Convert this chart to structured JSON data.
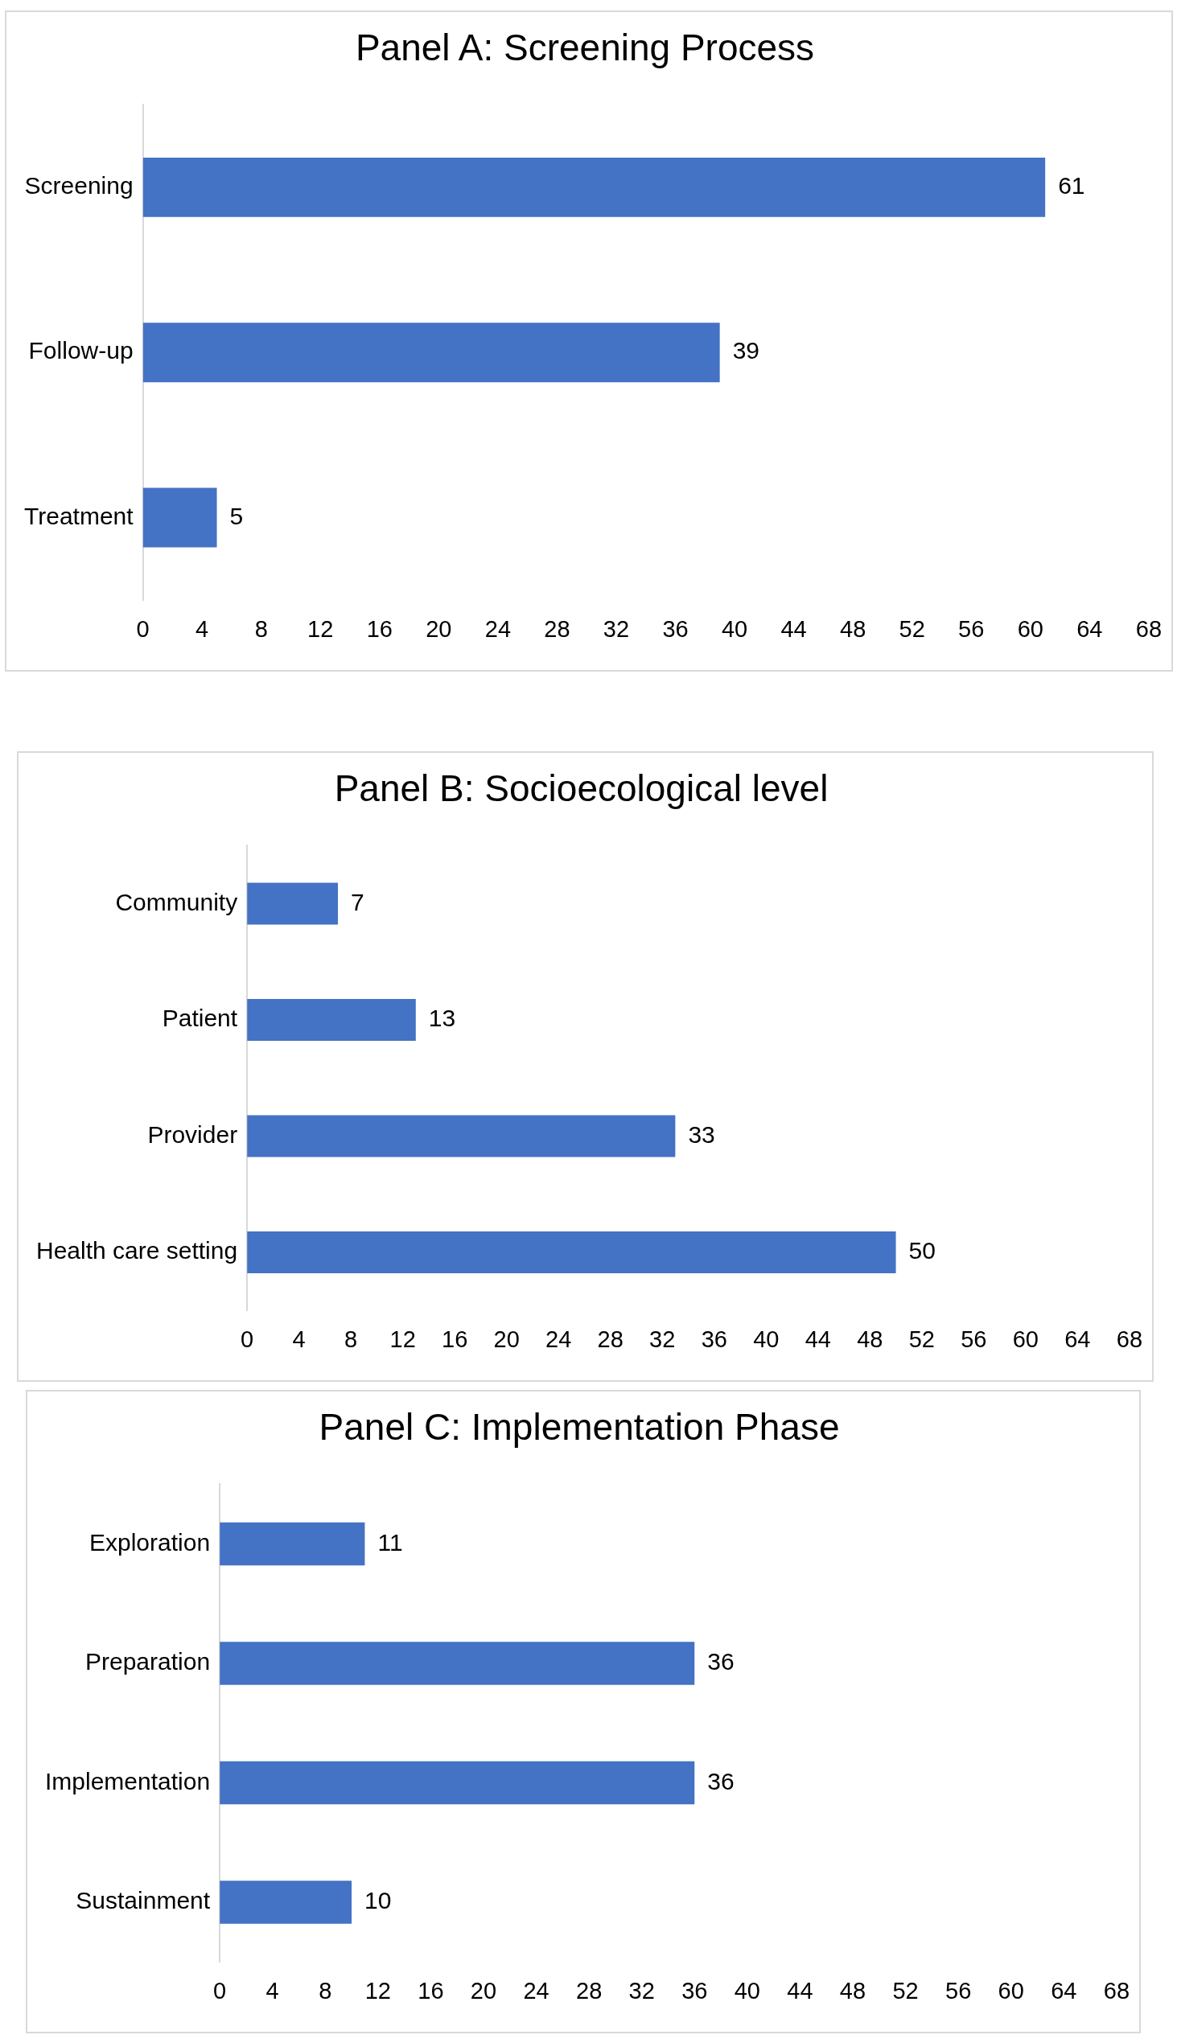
{
  "chart_data": [
    {
      "type": "bar",
      "orientation": "horizontal",
      "title": "Panel A: Screening Process",
      "categories": [
        "Screening",
        "Follow-up",
        "Treatment"
      ],
      "values": [
        61,
        39,
        5
      ],
      "color": "#4472c4",
      "xlim": [
        0,
        68
      ],
      "xticks": [
        0,
        4,
        8,
        12,
        16,
        20,
        24,
        28,
        32,
        36,
        40,
        44,
        48,
        52,
        56,
        60,
        64,
        68
      ],
      "data_labels": true,
      "legend": false
    },
    {
      "type": "bar",
      "orientation": "horizontal",
      "title": "Panel B: Socioecological level",
      "categories": [
        "Community",
        "Patient",
        "Provider",
        "Health care setting"
      ],
      "values": [
        7,
        13,
        33,
        50
      ],
      "color": "#4472c4",
      "xlim": [
        0,
        68
      ],
      "xticks": [
        0,
        4,
        8,
        12,
        16,
        20,
        24,
        28,
        32,
        36,
        40,
        44,
        48,
        52,
        56,
        60,
        64,
        68
      ],
      "data_labels": true,
      "legend": false
    },
    {
      "type": "bar",
      "orientation": "horizontal",
      "title": "Panel C: Implementation Phase",
      "categories": [
        "Exploration",
        "Preparation",
        "Implementation",
        "Sustainment"
      ],
      "values": [
        11,
        36,
        36,
        10
      ],
      "color": "#4472c4",
      "xlim": [
        0,
        68
      ],
      "xticks": [
        0,
        4,
        8,
        12,
        16,
        20,
        24,
        28,
        32,
        36,
        40,
        44,
        48,
        52,
        56,
        60,
        64,
        68
      ],
      "data_labels": true,
      "legend": false
    }
  ]
}
